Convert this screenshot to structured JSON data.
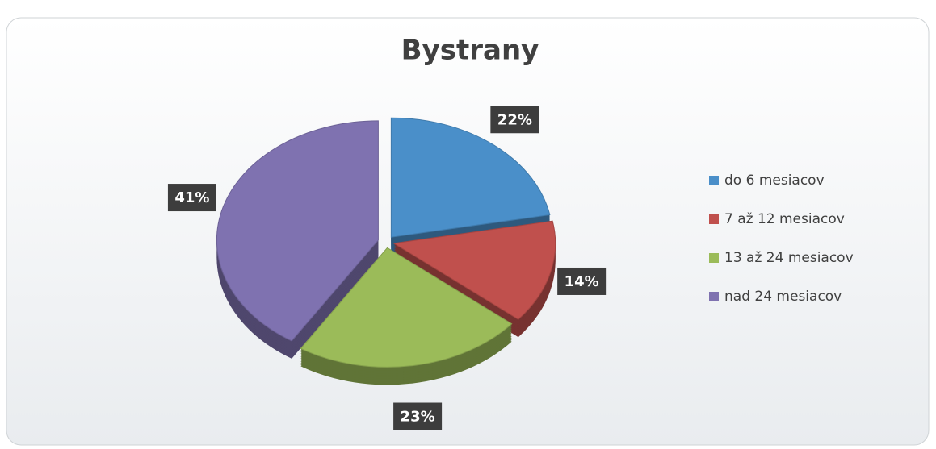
{
  "chart_data": {
    "type": "pie",
    "title": "Bystrany",
    "categories": [
      "do 6 mesiacov",
      "7 až 12 mesiacov",
      "13 až 24 mesiacov",
      "nad 24 mesiacov"
    ],
    "values": [
      22,
      14,
      23,
      41
    ],
    "value_labels": [
      "22%",
      "14%",
      "23%",
      "41%"
    ],
    "colors": [
      "#4a8fc9",
      "#c0504d",
      "#9bbb59",
      "#7f72b0"
    ],
    "legend": "right"
  }
}
